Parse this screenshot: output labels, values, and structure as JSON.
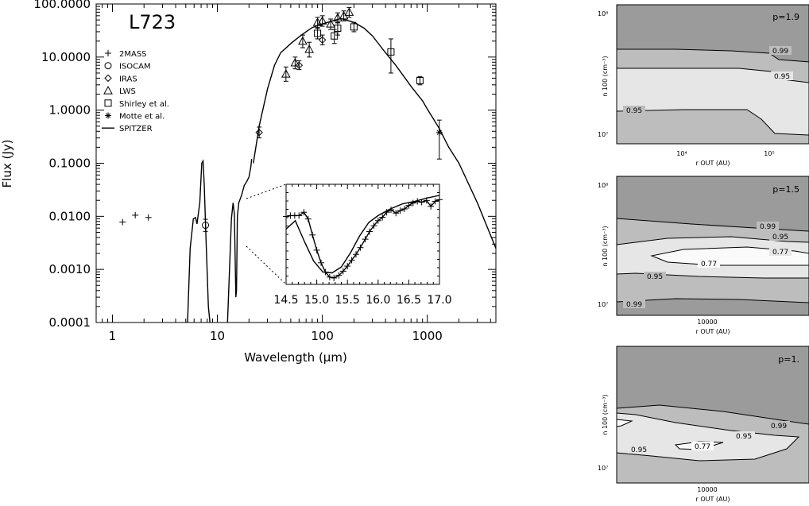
{
  "chart_data": [
    {
      "type": "scatter",
      "title": "L723",
      "xlabel": "Wavelength (μm)",
      "ylabel": "Flux (Jy)",
      "x_scale": "log",
      "y_scale": "log",
      "xlim": [
        0.7,
        4500
      ],
      "ylim": [
        0.0001,
        100
      ],
      "x_ticklabels": [
        "1",
        "10",
        "100",
        "1000"
      ],
      "y_ticklabels": [
        "100.0000",
        "10.0000",
        "1.0000",
        "0.1000",
        "0.0100",
        "0.0010",
        "0.0001"
      ],
      "legend_position": "upper-left",
      "series": [
        {
          "name": "2MASS",
          "marker": "plus",
          "points": [
            [
              1.25,
              0.0078
            ],
            [
              1.65,
              0.0105
            ],
            [
              2.2,
              0.0095
            ]
          ]
        },
        {
          "name": "ISOCAM",
          "marker": "circle",
          "points": [
            [
              7.7,
              0.0068
            ]
          ],
          "errors": [
            [
              0.0052,
              0.0088
            ]
          ]
        },
        {
          "name": "IRAS",
          "marker": "diamond",
          "points": [
            [
              25,
              0.38
            ],
            [
              60,
              7.0
            ],
            [
              100,
              21.0
            ]
          ],
          "errors": [
            [
              0.3,
              0.48
            ],
            [
              5.8,
              8.5
            ],
            [
              17,
              26
            ]
          ]
        },
        {
          "name": "LWS",
          "marker": "triangle",
          "points": [
            [
              45,
              4.8
            ],
            [
              55,
              7.8
            ],
            [
              65,
              20.0
            ],
            [
              75,
              14.0
            ],
            [
              90,
              45.0
            ],
            [
              100,
              48.0
            ],
            [
              120,
              42.0
            ],
            [
              140,
              55.0
            ],
            [
              160,
              60.0
            ],
            [
              180,
              70.0
            ]
          ],
          "errors": [
            [
              3.5,
              6.5
            ],
            [
              6,
              10
            ],
            [
              15,
              26
            ],
            [
              10,
              19
            ],
            [
              36,
              56
            ],
            [
              38,
              60
            ],
            [
              33,
              52
            ],
            [
              44,
              68
            ],
            [
              48,
              74
            ],
            [
              56,
              86
            ]
          ]
        },
        {
          "name": "Shirley et al.",
          "marker": "square",
          "points": [
            [
              90,
              28.0
            ],
            [
              130,
              25.0
            ],
            [
              140,
              35.0
            ],
            [
              200,
              37.0
            ],
            [
              450,
              12.5
            ],
            [
              850,
              3.6
            ]
          ],
          "errors": [
            [
              22,
              35
            ],
            [
              18,
              33
            ],
            [
              26,
              45
            ],
            [
              30,
              45
            ],
            [
              5,
              22
            ],
            [
              3.0,
              4.3
            ]
          ]
        },
        {
          "name": "Motte et al.",
          "marker": "asterisk",
          "points": [
            [
              1300,
              0.38
            ]
          ],
          "errors": [
            [
              0.12,
              0.65
            ]
          ]
        },
        {
          "name": "SPITZER",
          "marker": "line",
          "points": [
            [
              5.2,
              0.0001
            ],
            [
              5.5,
              0.0025
            ],
            [
              5.9,
              0.009
            ],
            [
              6.2,
              0.0095
            ],
            [
              6.4,
              0.0072
            ],
            [
              6.8,
              0.018
            ],
            [
              7.1,
              0.1
            ],
            [
              7.3,
              0.11
            ],
            [
              7.5,
              0.04
            ],
            [
              7.8,
              0.0035
            ],
            [
              8.2,
              0.0002
            ],
            [
              8.5,
              0.0001
            ]
          ]
        },
        {
          "name": "SPITZER",
          "marker": "line",
          "points": [
            [
              12.5,
              0.0001
            ],
            [
              13.6,
              0.009
            ],
            [
              14.1,
              0.018
            ],
            [
              14.5,
              0.011
            ],
            [
              15.0,
              0.0003
            ],
            [
              15.2,
              0.0004
            ],
            [
              15.5,
              0.01
            ],
            [
              16.0,
              0.018
            ],
            [
              17.0,
              0.025
            ],
            [
              18.0,
              0.038
            ],
            [
              19.0,
              0.045
            ],
            [
              20.0,
              0.055
            ],
            [
              20.8,
              0.085
            ],
            [
              21.2,
              0.12
            ]
          ]
        },
        {
          "name": "",
          "marker": "line",
          "points": [
            [
              22,
              0.1
            ],
            [
              25,
              0.5
            ],
            [
              30,
              2.5
            ],
            [
              35,
              7
            ],
            [
              40,
              12
            ],
            [
              50,
              18
            ],
            [
              60,
              24
            ],
            [
              70,
              30
            ],
            [
              80,
              36
            ],
            [
              100,
              42
            ],
            [
              120,
              47
            ],
            [
              150,
              53
            ],
            [
              180,
              48
            ],
            [
              200,
              45
            ],
            [
              250,
              35
            ],
            [
              300,
              25
            ],
            [
              400,
              12
            ],
            [
              500,
              7
            ],
            [
              700,
              2.8
            ],
            [
              900,
              1.5
            ],
            [
              1000,
              1.05
            ],
            [
              1300,
              0.45
            ],
            [
              1600,
              0.2
            ],
            [
              2000,
              0.1
            ],
            [
              3000,
              0.018
            ],
            [
              4500,
              0.0025
            ]
          ]
        }
      ],
      "inset": {
        "x_ticklabels": [
          "14.5",
          "15.0",
          "15.5",
          "16.0",
          "16.5",
          "17.0"
        ],
        "xlim": [
          14.5,
          17.0
        ],
        "ylim": [
          0.0,
          1.0
        ],
        "model": [
          [
            14.5,
            0.6
          ],
          [
            14.65,
            0.7
          ],
          [
            14.8,
            0.45
          ],
          [
            14.95,
            0.22
          ],
          [
            15.1,
            0.09
          ],
          [
            15.25,
            0.08
          ],
          [
            15.4,
            0.15
          ],
          [
            15.55,
            0.32
          ],
          [
            15.7,
            0.52
          ],
          [
            15.85,
            0.68
          ],
          [
            16.0,
            0.76
          ],
          [
            16.2,
            0.84
          ],
          [
            16.4,
            0.9
          ],
          [
            16.6,
            0.93
          ],
          [
            16.8,
            0.97
          ],
          [
            17.0,
            1.0
          ]
        ],
        "data": [
          [
            14.5,
            0.75
          ],
          [
            14.57,
            0.76
          ],
          [
            14.64,
            0.76
          ],
          [
            14.71,
            0.76
          ],
          [
            14.79,
            0.8
          ],
          [
            14.86,
            0.72
          ],
          [
            14.93,
            0.53
          ],
          [
            15.0,
            0.35
          ],
          [
            15.07,
            0.2
          ],
          [
            15.14,
            0.09
          ],
          [
            15.21,
            0.03
          ],
          [
            15.28,
            0.02
          ],
          [
            15.36,
            0.05
          ],
          [
            15.43,
            0.1
          ],
          [
            15.5,
            0.16
          ],
          [
            15.57,
            0.23
          ],
          [
            15.64,
            0.3
          ],
          [
            15.71,
            0.38
          ],
          [
            15.79,
            0.48
          ],
          [
            15.86,
            0.57
          ],
          [
            15.93,
            0.64
          ],
          [
            16.0,
            0.7
          ],
          [
            16.07,
            0.74
          ],
          [
            16.14,
            0.8
          ],
          [
            16.21,
            0.83
          ],
          [
            16.29,
            0.79
          ],
          [
            16.36,
            0.82
          ],
          [
            16.43,
            0.84
          ],
          [
            16.5,
            0.88
          ],
          [
            16.57,
            0.91
          ],
          [
            16.64,
            0.93
          ],
          [
            16.71,
            0.92
          ],
          [
            16.79,
            0.94
          ],
          [
            16.86,
            0.87
          ],
          [
            16.93,
            0.93
          ],
          [
            17.0,
            0.95
          ]
        ]
      }
    },
    {
      "type": "contour",
      "annotation": "p=1.9",
      "xlabel": "r OUT (AU)",
      "ylabel": "n 100 (cm⁻³)",
      "x_ticklabels": [
        "10⁴",
        "10⁵"
      ],
      "y_ticklabels": [
        "10⁸",
        "10⁷"
      ],
      "contour_labels": [
        "0.99",
        "0.95",
        "0.95"
      ]
    },
    {
      "type": "contour",
      "annotation": "p=1.5",
      "xlabel": "r OUT (AU)",
      "ylabel": "n 100 (cm⁻³)",
      "x_ticklabels": [
        "10000"
      ],
      "y_ticklabels": [
        "10⁸",
        "10⁷"
      ],
      "contour_labels": [
        "0.99",
        "0.95",
        "0.77",
        "0.77",
        "0.95",
        "0.99"
      ]
    },
    {
      "type": "contour",
      "annotation": "p=1.",
      "xlabel": "r OUT (AU)",
      "ylabel": "n 100 (cm⁻³)",
      "x_ticklabels": [
        "10000"
      ],
      "y_ticklabels": [
        "10⁷"
      ],
      "contour_labels": [
        "0.99",
        "0.95",
        "0.77",
        "0.95"
      ]
    }
  ]
}
